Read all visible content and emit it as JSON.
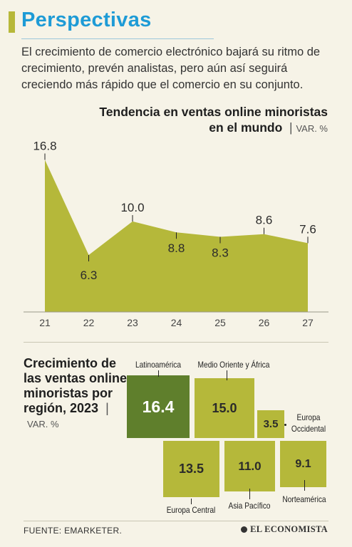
{
  "header": {
    "title": "Perspectivas",
    "intro": "El crecimiento de comercio electrónico bajará su ritmo de crecimiento, prevén analistas, pero aún así seguirá creciendo más rápido que el comercio en su conjunto."
  },
  "colors": {
    "title": "#1e9bd6",
    "olive": "#b5b83a",
    "dark_green": "#5f7f2c",
    "background": "#f6f3e7"
  },
  "chart_data": [
    {
      "type": "area",
      "title_line1": "Tendencia en ventas online minoristas",
      "title_line2": "en el mundo",
      "unit": "VAR. %",
      "categories": [
        "21",
        "22",
        "23",
        "24",
        "25",
        "26",
        "27"
      ],
      "values": [
        16.8,
        6.3,
        10.0,
        8.8,
        8.3,
        8.6,
        7.6
      ],
      "value_labels": [
        "16.8",
        "6.3",
        "10.0",
        "8.8",
        "8.3",
        "8.6",
        "7.6"
      ],
      "ylim": [
        0,
        17
      ],
      "grid": false
    },
    {
      "type": "treemap",
      "title": "Crecimiento de las ventas online minoristas por región, 2023",
      "unit": "VAR. %",
      "regions": [
        {
          "name": "Latinoamérica",
          "value": 16.4,
          "label": "16.4",
          "highlight": true
        },
        {
          "name": "Medio Oriente y África",
          "value": 15.0,
          "label": "15.0"
        },
        {
          "name": "Europa Occidental",
          "value": 3.5,
          "label": "3.5"
        },
        {
          "name": "Europa Central",
          "value": 13.5,
          "label": "13.5"
        },
        {
          "name": "Asia Pacífico",
          "value": 11.0,
          "label": "11.0"
        },
        {
          "name": "Norteamérica",
          "value": 9.1,
          "label": "9.1"
        }
      ]
    }
  ],
  "footer": {
    "source": "FUENTE: EMARKETER.",
    "brand": "EL ECONOMISTA"
  }
}
